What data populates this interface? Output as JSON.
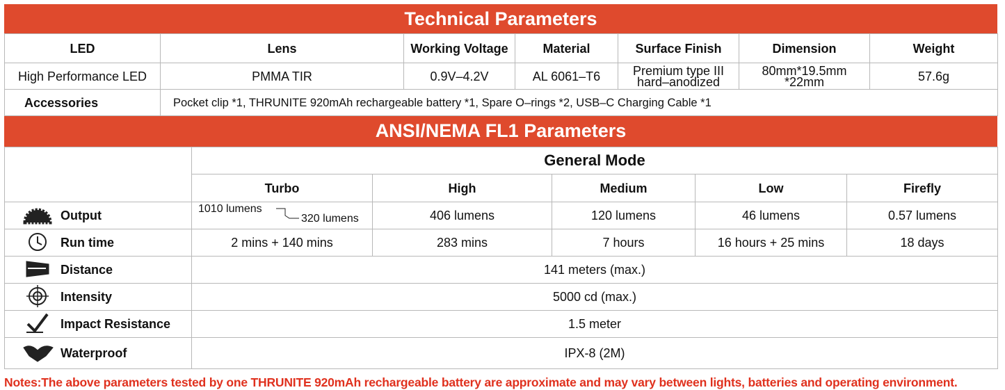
{
  "header": {
    "title": "Technical Parameters"
  },
  "tech_table": {
    "columns": [
      "LED",
      "Lens",
      "Working Voltage",
      "Material",
      "Surface Finish",
      "Dimension",
      "Weight"
    ],
    "row": [
      "High Performance LED",
      "PMMA TIR",
      "0.9V–4.2V",
      "AL 6061–T6",
      "Premium type III hard–anodized",
      "80mm*19.5mm *22mm",
      "57.6g"
    ],
    "accessories": {
      "label": "Accessories",
      "value": "Pocket clip *1, THRUNITE 920mAh  rechargeable battery *1, Spare O–rings *2, USB–C Charging Cable *1"
    }
  },
  "fl1": {
    "title": "ANSI/NEMA FL1 Parameters",
    "group": "General Mode",
    "modes": [
      "Turbo",
      "High",
      "Medium",
      "Low",
      "Firefly"
    ],
    "rows": [
      {
        "label": "Output",
        "values": [
          [
            "1010 lumens",
            "320 lumens"
          ],
          "406 lumens",
          "120 lumens",
          "46 lumens",
          "0.57 lumens"
        ]
      },
      {
        "label": "Run time",
        "values": [
          "2 mins + 140 mins",
          "283 mins",
          "7 hours",
          "16 hours + 25 mins",
          "18 days"
        ]
      },
      {
        "label": "Distance",
        "value": "141 meters (max.)"
      },
      {
        "label": "Intensity",
        "value": "5000 cd (max.)"
      },
      {
        "label": "Impact Resistance",
        "value": "1.5 meter"
      },
      {
        "label": "Waterproof",
        "value": "IPX-8 (2M)"
      }
    ]
  },
  "notes": "Notes:The above parameters tested by one THRUNITE 920mAh rechargeable battery are approximate and may vary between lights, batteries and operating environment."
}
